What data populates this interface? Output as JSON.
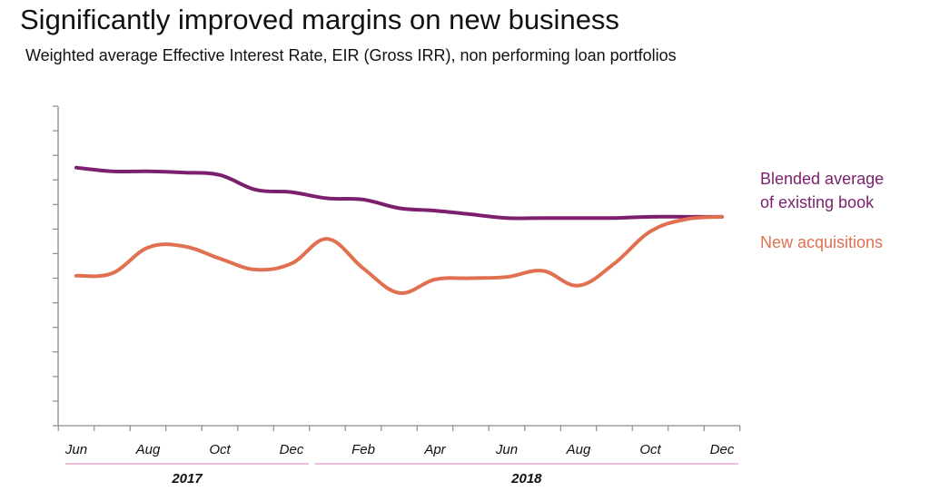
{
  "header": {
    "title": "Significantly improved margins on new business",
    "subtitle": "Weighted average Effective Interest Rate, EIR (Gross IRR), non performing loan portfolios"
  },
  "chart_data": {
    "type": "line",
    "title": "Significantly improved margins on new business",
    "subtitle": "Weighted average Effective Interest Rate, EIR (Gross IRR), non performing loan portfolios",
    "xlabel": "",
    "ylabel": "",
    "y_tick_labels_shown": false,
    "grid": false,
    "ylim": [
      0,
      13
    ],
    "x": [
      "Jun 2017",
      "Jul 2017",
      "Aug 2017",
      "Sep 2017",
      "Oct 2017",
      "Nov 2017",
      "Dec 2017",
      "Jan 2018",
      "Feb 2018",
      "Mar 2018",
      "Apr 2018",
      "May 2018",
      "Jun 2018",
      "Jul 2018",
      "Aug 2018",
      "Sep 2018",
      "Oct 2018",
      "Nov 2018",
      "Dec 2018"
    ],
    "tick_labels": [
      "Jun",
      "Aug",
      "Oct",
      "Dec",
      "Feb",
      "Apr",
      "Jun",
      "Aug",
      "Oct",
      "Dec"
    ],
    "tick_months": [
      "Jun 2017",
      "Aug 2017",
      "Oct 2017",
      "Dec 2017",
      "Feb 2018",
      "Apr 2018",
      "Jun 2018",
      "Aug 2018",
      "Oct 2018",
      "Dec 2018"
    ],
    "year_groups": [
      {
        "label": "2017",
        "from": "Jun 2017",
        "to": "Dec 2017"
      },
      {
        "label": "2018",
        "from": "Jan 2018",
        "to": "Dec 2018"
      }
    ],
    "series": [
      {
        "name": "Blended average of existing book",
        "legend_lines": [
          "Blended average",
          "of existing book"
        ],
        "color": "#7b1f6e",
        "values": [
          10.5,
          10.35,
          10.35,
          10.3,
          10.2,
          9.6,
          9.5,
          9.25,
          9.2,
          8.85,
          8.75,
          8.6,
          8.45,
          8.45,
          8.45,
          8.45,
          8.5,
          8.5,
          8.5
        ]
      },
      {
        "name": "New acquisitions",
        "legend_lines": [
          "New acquisitions"
        ],
        "color": "#e07050",
        "values": [
          6.1,
          6.2,
          7.25,
          7.3,
          6.8,
          6.35,
          6.6,
          7.6,
          6.4,
          5.4,
          5.95,
          6.0,
          6.05,
          6.3,
          5.7,
          6.6,
          7.9,
          8.4,
          8.5
        ]
      }
    ]
  }
}
